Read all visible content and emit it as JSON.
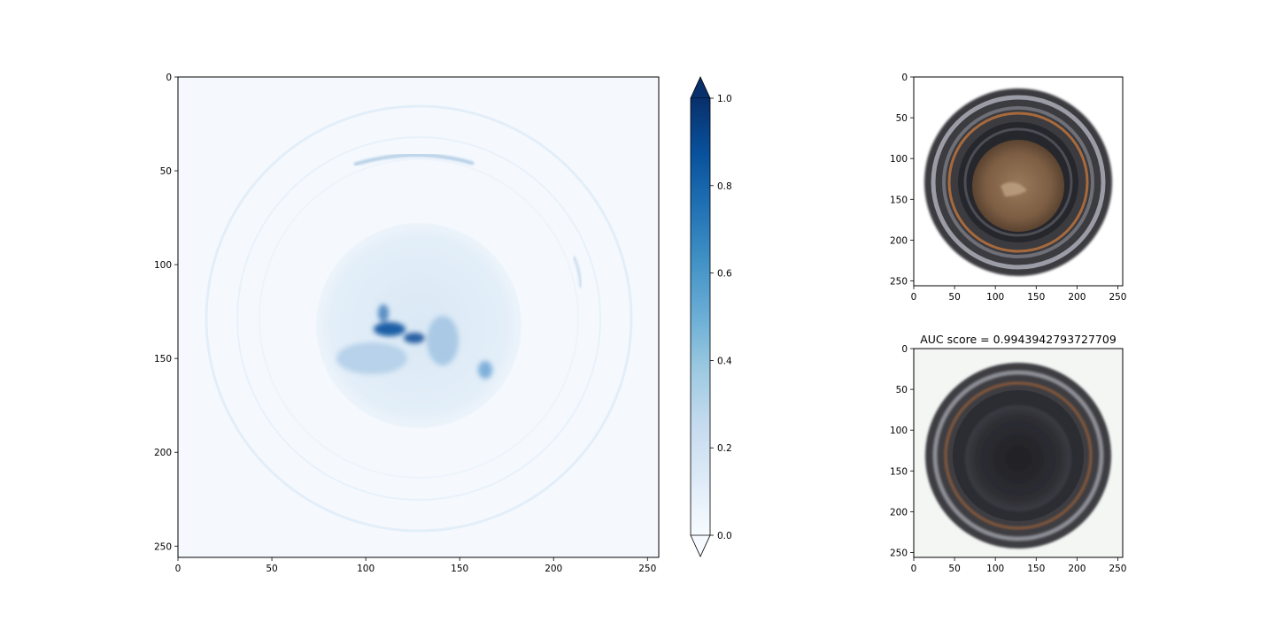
{
  "chart_data": [
    {
      "type": "heatmap",
      "title": "",
      "xlabel": "",
      "ylabel": "",
      "xlim": [
        0,
        256
      ],
      "ylim": [
        256,
        0
      ],
      "xticks": [
        0,
        50,
        100,
        150,
        200,
        250
      ],
      "yticks": [
        0,
        50,
        100,
        150,
        200,
        250
      ],
      "colormap": "Blues",
      "colorbar": {
        "range": [
          0.0,
          1.0
        ],
        "ticks": [
          "0.0",
          "0.2",
          "0.4",
          "0.6",
          "0.8",
          "1.0"
        ],
        "extend": "both",
        "colors": [
          "#f7fbff",
          "#deebf7",
          "#c6dbef",
          "#9ecae1",
          "#6baed6",
          "#4292c6",
          "#2171b5",
          "#08519c",
          "#08306b"
        ]
      },
      "description_values": {
        "center_disk_level": 0.1,
        "ring_level": 0.05,
        "hotspot_peak": 1.0,
        "hotspot_center": [
          120,
          134
        ]
      }
    },
    {
      "type": "image",
      "title": "",
      "xlim": [
        0,
        256
      ],
      "ylim": [
        256,
        0
      ],
      "xticks": [
        0,
        50,
        100,
        150,
        200,
        250
      ],
      "yticks": [
        0,
        50,
        100,
        150,
        200,
        250
      ]
    },
    {
      "type": "image",
      "title": "AUC score = 0.9943942793727709",
      "xlim": [
        0,
        256
      ],
      "ylim": [
        256,
        0
      ],
      "xticks": [
        0,
        50,
        100,
        150,
        200,
        250
      ],
      "yticks": [
        0,
        50,
        100,
        150,
        200,
        250
      ]
    }
  ]
}
